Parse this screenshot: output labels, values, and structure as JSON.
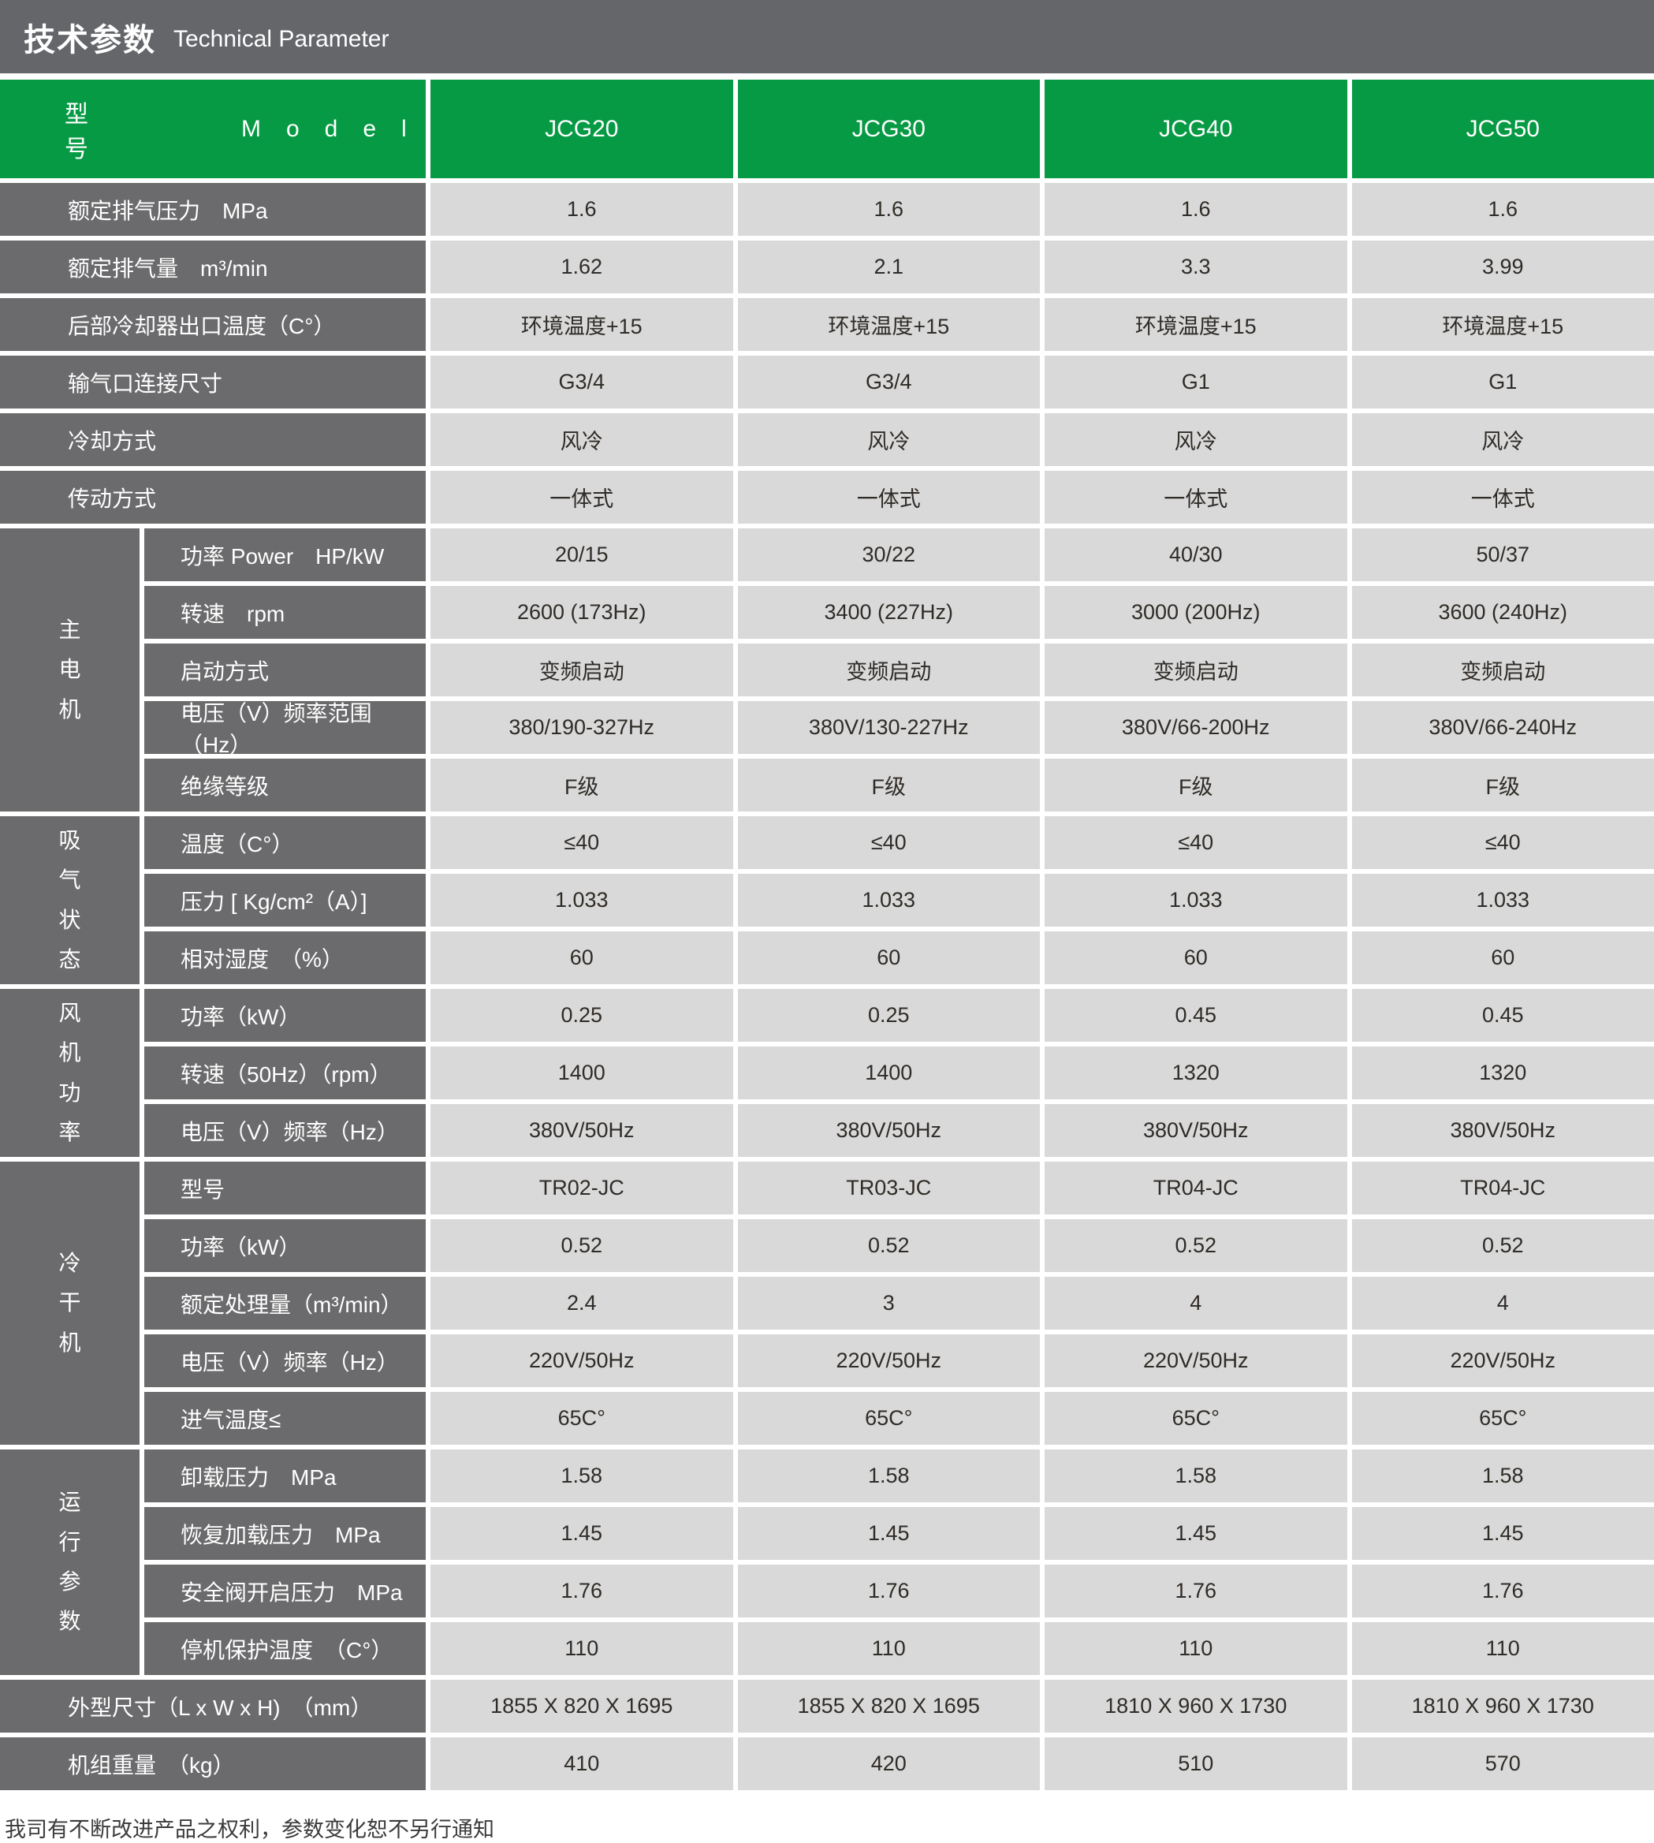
{
  "title": {
    "zh": "技术参数",
    "en": "Technical Parameter"
  },
  "header": {
    "label_zh": "型　号",
    "label_en": "Model",
    "models": [
      "JCG20",
      "JCG30",
      "JCG40",
      "JCG50"
    ]
  },
  "colors": {
    "green": "#079a44",
    "header_gray": "#64666a",
    "label_gray": "#6b6b6d",
    "cell_gray": "#d9d9d9"
  },
  "table": {
    "groups": [
      {
        "label": "主电机"
      },
      {
        "label": "吸气状态"
      },
      {
        "label": "风机功率"
      },
      {
        "label": "冷干机"
      },
      {
        "label": "运行参数"
      }
    ],
    "rows": [
      {
        "label": "额定排气压力　MPa",
        "values": [
          "1.6",
          "1.6",
          "1.6",
          "1.6"
        ]
      },
      {
        "label": "额定排气量　m³/min",
        "values": [
          "1.62",
          "2.1",
          "3.3",
          "3.99"
        ]
      },
      {
        "label": "后部冷却器出口温度（C°）",
        "values": [
          "环境温度+15",
          "环境温度+15",
          "环境温度+15",
          "环境温度+15"
        ]
      },
      {
        "label": "输气口连接尺寸",
        "values": [
          "G3/4",
          "G3/4",
          "G1",
          "G1"
        ]
      },
      {
        "label": "冷却方式",
        "values": [
          "风冷",
          "风冷",
          "风冷",
          "风冷"
        ]
      },
      {
        "label": "传动方式",
        "values": [
          "一体式",
          "一体式",
          "一体式",
          "一体式"
        ]
      },
      {
        "label": "功率 Power　HP/kW",
        "values": [
          "20/15",
          "30/22",
          "40/30",
          "50/37"
        ]
      },
      {
        "label": "转速　rpm",
        "values": [
          "2600 (173Hz)",
          "3400 (227Hz)",
          "3000 (200Hz)",
          "3600 (240Hz)"
        ]
      },
      {
        "label": "启动方式",
        "values": [
          "变频启动",
          "变频启动",
          "变频启动",
          "变频启动"
        ]
      },
      {
        "label": "电压（V）频率范围（Hz）",
        "values": [
          "380/190-327Hz",
          "380V/130-227Hz",
          "380V/66-200Hz",
          "380V/66-240Hz"
        ]
      },
      {
        "label": "绝缘等级",
        "values": [
          "F级",
          "F级",
          "F级",
          "F级"
        ]
      },
      {
        "label": "温度（C°）",
        "values": [
          "≤40",
          "≤40",
          "≤40",
          "≤40"
        ]
      },
      {
        "label": "压力 [ Kg/cm²（A）]",
        "values": [
          "1.033",
          "1.033",
          "1.033",
          "1.033"
        ]
      },
      {
        "label": "相对湿度　（%）",
        "values": [
          "60",
          "60",
          "60",
          "60"
        ]
      },
      {
        "label": "功率（kW）",
        "values": [
          "0.25",
          "0.25",
          "0.45",
          "0.45"
        ]
      },
      {
        "label": "转速（50Hz）（rpm）",
        "values": [
          "1400",
          "1400",
          "1320",
          "1320"
        ]
      },
      {
        "label": "电压（V）频率（Hz）",
        "values": [
          "380V/50Hz",
          "380V/50Hz",
          "380V/50Hz",
          "380V/50Hz"
        ]
      },
      {
        "label": "型号",
        "values": [
          "TR02-JC",
          "TR03-JC",
          "TR04-JC",
          "TR04-JC"
        ]
      },
      {
        "label": "功率（kW）",
        "values": [
          "0.52",
          "0.52",
          "0.52",
          "0.52"
        ]
      },
      {
        "label": "额定处理量（m³/min）",
        "values": [
          "2.4",
          "3",
          "4",
          "4"
        ]
      },
      {
        "label": "电压（V）频率（Hz）",
        "values": [
          "220V/50Hz",
          "220V/50Hz",
          "220V/50Hz",
          "220V/50Hz"
        ]
      },
      {
        "label": "进气温度≤",
        "values": [
          "65C°",
          "65C°",
          "65C°",
          "65C°"
        ]
      },
      {
        "label": "卸载压力　MPa",
        "values": [
          "1.58",
          "1.58",
          "1.58",
          "1.58"
        ]
      },
      {
        "label": "恢复加载压力　MPa",
        "values": [
          "1.45",
          "1.45",
          "1.45",
          "1.45"
        ]
      },
      {
        "label": "安全阀开启压力　MPa",
        "values": [
          "1.76",
          "1.76",
          "1.76",
          "1.76"
        ]
      },
      {
        "label": "停机保护温度　（C°）",
        "values": [
          "110",
          "110",
          "110",
          "110"
        ]
      },
      {
        "label": "外型尺寸（L x W x H)　（mm）",
        "values": [
          "1855 X 820 X 1695",
          "1855 X 820 X 1695",
          "1810 X 960 X 1730",
          "1810 X 960 X 1730"
        ]
      },
      {
        "label": "机组重量　（kg）",
        "values": [
          "410",
          "420",
          "510",
          "570"
        ]
      }
    ]
  },
  "footer": {
    "note": "我司有不断改进产品之权利，参数变化恕不另行通知"
  }
}
